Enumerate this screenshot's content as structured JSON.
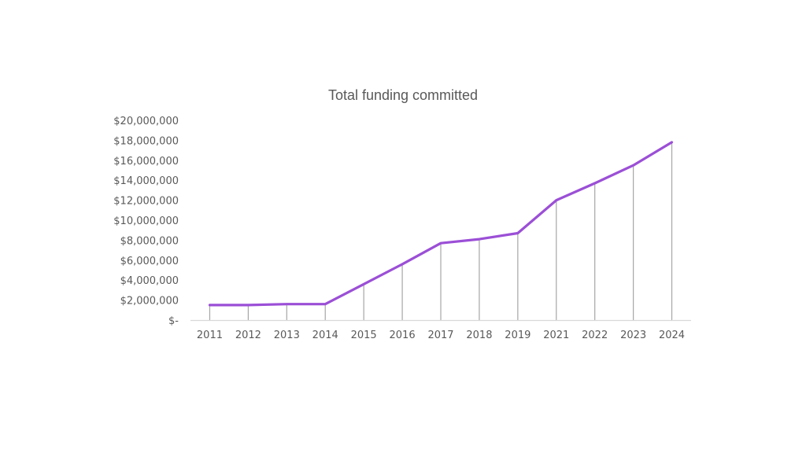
{
  "chart": {
    "title": "Total funding committed"
  },
  "chart_data": {
    "type": "line",
    "title": "Total funding committed",
    "xlabel": "",
    "ylabel": "",
    "categories": [
      "2011",
      "2012",
      "2013",
      "2014",
      "2015",
      "2016",
      "2017",
      "2018",
      "2019",
      "2021",
      "2022",
      "2023",
      "2024"
    ],
    "series": [
      {
        "name": "Total funding committed",
        "color": "#9b4fd6",
        "values": [
          1500000,
          1500000,
          1600000,
          1600000,
          3600000,
          5600000,
          7700000,
          8100000,
          8700000,
          12000000,
          13700000,
          15500000,
          17800000
        ]
      }
    ],
    "ylim": [
      0,
      20000000
    ],
    "y_ticks": [
      0,
      2000000,
      4000000,
      6000000,
      8000000,
      10000000,
      12000000,
      14000000,
      16000000,
      18000000,
      20000000
    ],
    "y_tick_labels": [
      "$-",
      "$2,000,000",
      "$4,000,000",
      "$6,000,000",
      "$8,000,000",
      "$10,000,000",
      "$12,000,000",
      "$14,000,000",
      "$16,000,000",
      "$18,000,000",
      "$20,000,000"
    ],
    "grid": false,
    "drop_lines": true,
    "legend": "none"
  }
}
